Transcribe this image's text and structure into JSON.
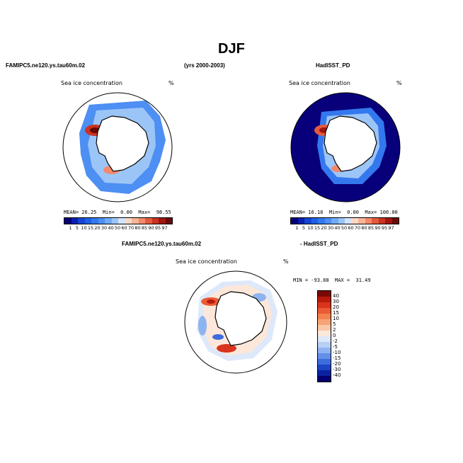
{
  "page": {
    "title": "DJF",
    "top_left_case": "FAMIPC5.ne120.ys.tau60m.02",
    "years": "(yrs 2000-2003)",
    "top_right_case": "HadISST_PD",
    "bottom_left_case": "FAMIPC5.ne120.ys.tau60m.02",
    "bottom_right_case": "- HadISST_PD"
  },
  "panels": {
    "left": {
      "variable": "Sea ice concentration",
      "unit": "%",
      "stats": {
        "mean_label": "MEAN=",
        "mean": "26.25",
        "min_label": "Min=",
        "min": "0.00",
        "max_label": "Max=",
        "max": "98.55"
      }
    },
    "right": {
      "variable": "Sea ice concentration",
      "unit": "%",
      "stats": {
        "mean_label": "MEAN=",
        "mean": "16.18",
        "min_label": "Min=",
        "min": "0.00",
        "max_label": "Max=",
        "max": "100.00"
      }
    },
    "diff": {
      "variable": "Sea ice concentration",
      "unit": "%",
      "stats_text": "MIN = -93.88  MAX =  31.49"
    }
  },
  "colorbar_main": {
    "levels": [
      "1",
      "5",
      "10",
      "15",
      "20",
      "30",
      "40",
      "50",
      "60",
      "70",
      "80",
      "85",
      "90",
      "95",
      "97"
    ],
    "colors": [
      "#08007a",
      "#0a1fae",
      "#1545d2",
      "#2060e6",
      "#3478ef",
      "#4d8ff3",
      "#70aaf5",
      "#9cc5f7",
      "#d4e4f8",
      "#fbd8c6",
      "#f8b597",
      "#f2896b",
      "#e45a3e",
      "#c93320",
      "#a01510",
      "#6a0906"
    ]
  },
  "colorbar_diff": {
    "levels": [
      "40",
      "30",
      "20",
      "15",
      "10",
      "5",
      "2",
      "0",
      "-2",
      "-5",
      "-10",
      "-15",
      "-20",
      "-30",
      "-40"
    ],
    "colors": [
      "#7a0a05",
      "#b81a0e",
      "#d9341c",
      "#ea5a34",
      "#f2824f",
      "#f6a477",
      "#f9c8a8",
      "#fce7da",
      "#dde9fa",
      "#b8d0f6",
      "#8eb3f1",
      "#648fe8",
      "#3d6cdd",
      "#1c45c6",
      "#0b22a0",
      "#06006e"
    ]
  }
}
